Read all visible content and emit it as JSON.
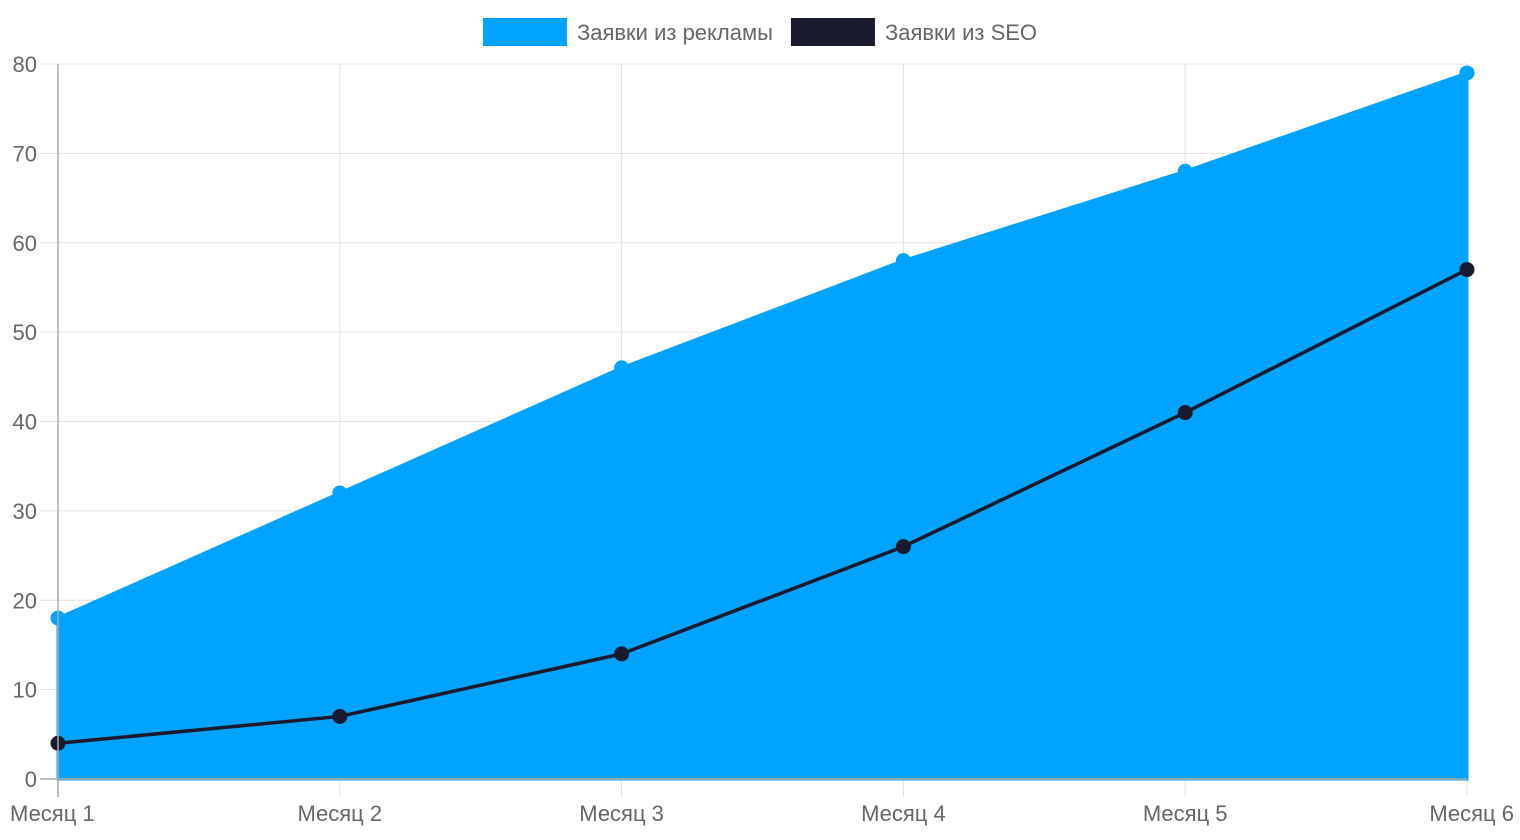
{
  "chart_data": {
    "type": "area",
    "categories": [
      "Месяц 1",
      "Месяц 2",
      "Месяц 3",
      "Месяц 4",
      "Месяц 5",
      "Месяц 6"
    ],
    "series": [
      {
        "name": "Заявки из рекламы",
        "values": [
          18,
          32,
          46,
          58,
          68,
          79
        ],
        "color": "#00a3ff",
        "style": "filled-area"
      },
      {
        "name": "Заявки из SEO",
        "values": [
          4,
          7,
          14,
          26,
          41,
          57
        ],
        "color": "#1a1a2e",
        "style": "line"
      }
    ],
    "ylim": [
      0,
      80
    ],
    "yticks": [
      0,
      10,
      20,
      30,
      40,
      50,
      60,
      70,
      80
    ],
    "grid": true,
    "legend_position": "top-center"
  }
}
